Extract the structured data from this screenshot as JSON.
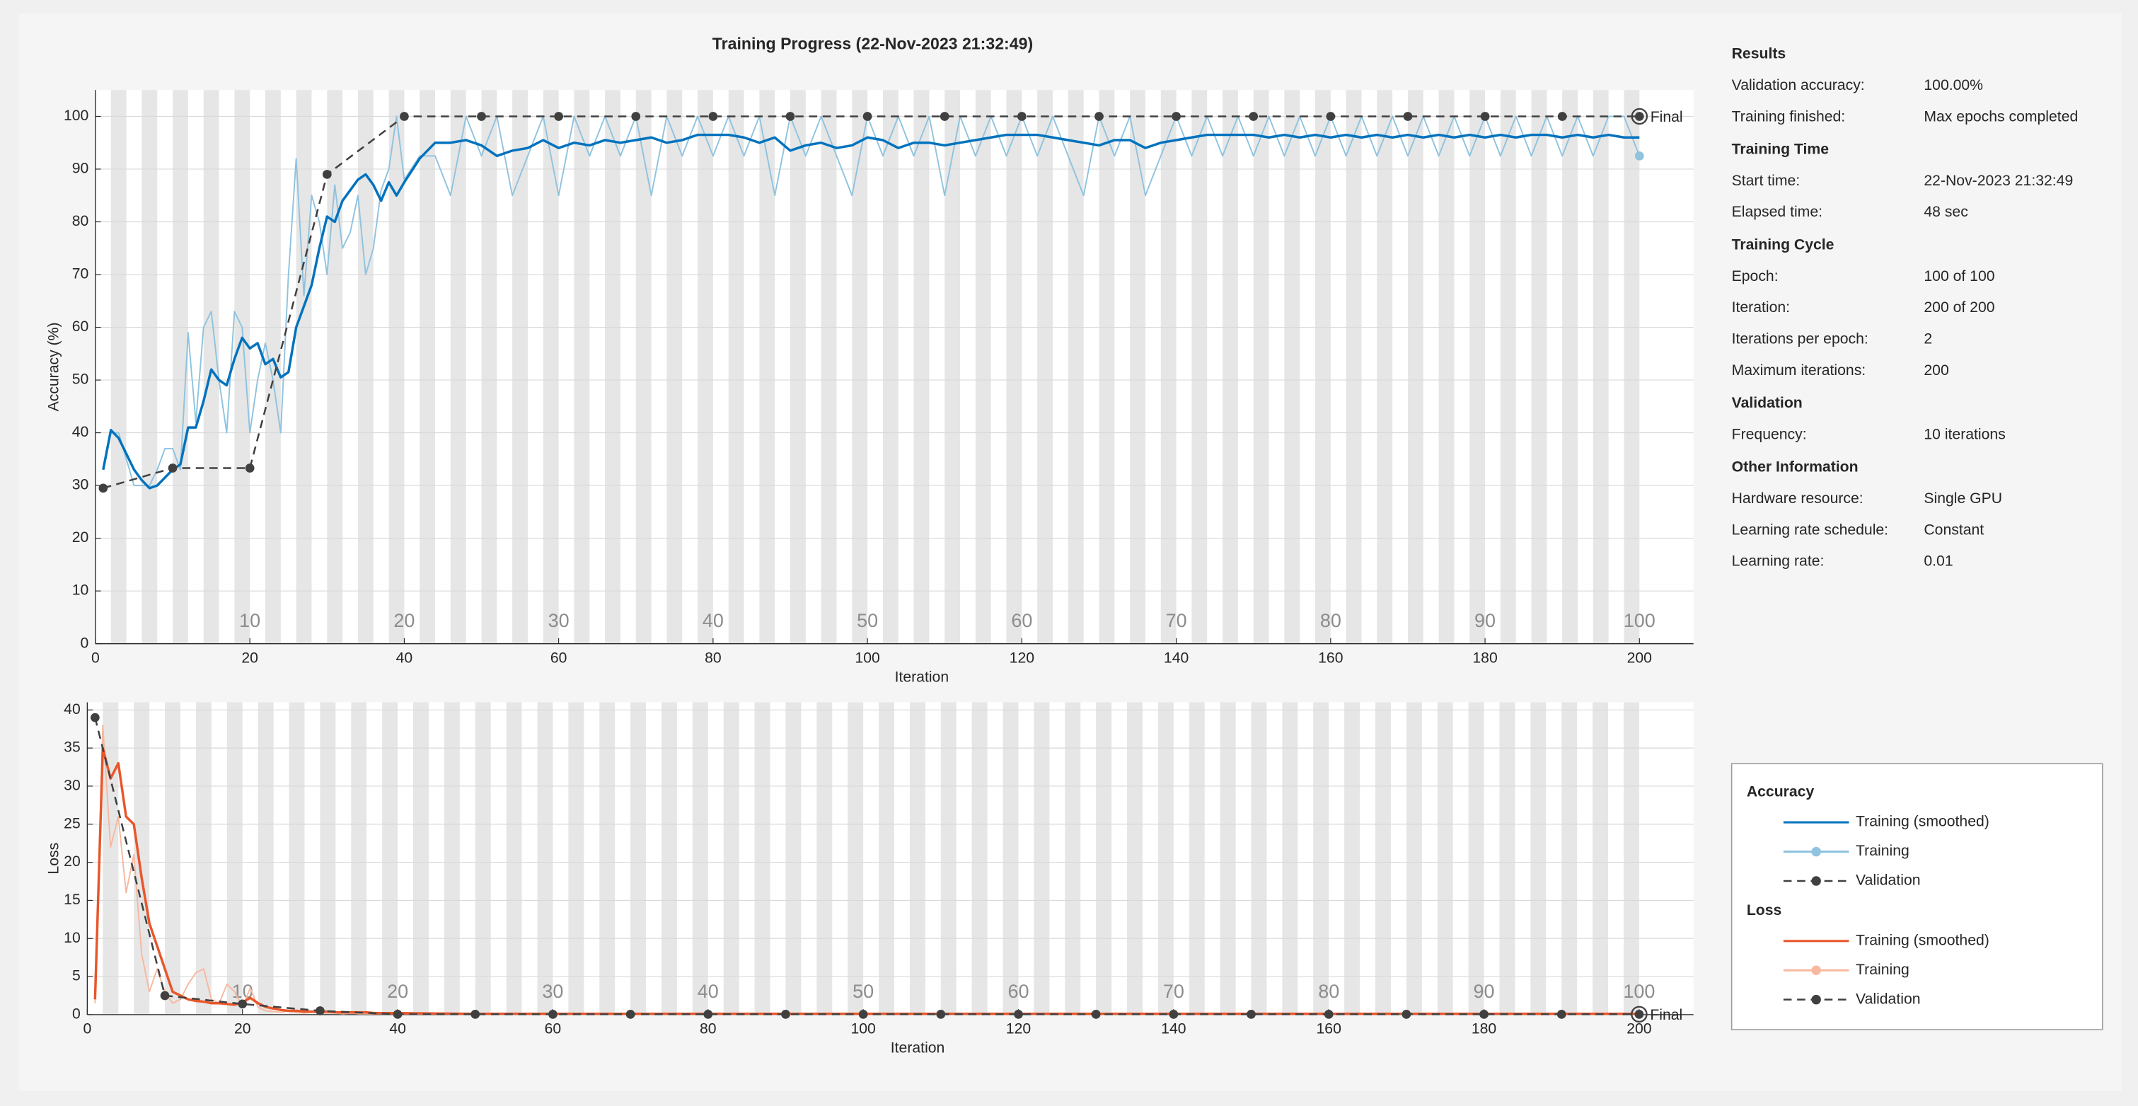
{
  "title": "Training Progress (22-Nov-2023 21:32:49)",
  "chart_data": [
    {
      "type": "line",
      "ylabel": "Accuracy (%)",
      "xlabel": "Iteration",
      "legend_title": "Accuracy",
      "final_label": "Final",
      "xlim": [
        0,
        207
      ],
      "ylim": [
        0,
        105
      ],
      "xticks": [
        0,
        20,
        40,
        60,
        80,
        100,
        120,
        140,
        160,
        180,
        200
      ],
      "yticks": [
        0,
        10,
        20,
        30,
        40,
        50,
        60,
        70,
        80,
        90,
        100
      ],
      "epoch_ticks": [
        {
          "value": 20,
          "label": "10"
        },
        {
          "value": 40,
          "label": "20"
        },
        {
          "value": 60,
          "label": "30"
        },
        {
          "value": 80,
          "label": "40"
        },
        {
          "value": 100,
          "label": "50"
        },
        {
          "value": 120,
          "label": "60"
        },
        {
          "value": 140,
          "label": "70"
        },
        {
          "value": 160,
          "label": "80"
        },
        {
          "value": 180,
          "label": "90"
        },
        {
          "value": 200,
          "label": "100"
        }
      ],
      "series": [
        {
          "name": "Training",
          "color": "#8fc3df",
          "line_style": "solid",
          "end_marker": true,
          "x": [
            1,
            2,
            3,
            4,
            5,
            6,
            7,
            8,
            9,
            10,
            11,
            12,
            13,
            14,
            15,
            16,
            17,
            18,
            19,
            20,
            21,
            22,
            23,
            24,
            25,
            26,
            27,
            28,
            29,
            30,
            31,
            32,
            33,
            34,
            35,
            36,
            37,
            38,
            39,
            40,
            42,
            44,
            46,
            48,
            50,
            52,
            54,
            56,
            58,
            60,
            62,
            64,
            66,
            68,
            70,
            72,
            74,
            76,
            78,
            80,
            82,
            84,
            86,
            88,
            90,
            92,
            94,
            96,
            98,
            100,
            102,
            104,
            106,
            108,
            110,
            112,
            114,
            116,
            118,
            120,
            122,
            124,
            126,
            128,
            130,
            132,
            134,
            136,
            138,
            140,
            142,
            144,
            146,
            148,
            150,
            152,
            154,
            156,
            158,
            160,
            162,
            164,
            166,
            168,
            170,
            172,
            174,
            176,
            178,
            180,
            182,
            184,
            186,
            188,
            190,
            192,
            194,
            196,
            198,
            200
          ],
          "values": [
            33,
            40,
            40,
            35,
            30,
            30,
            30,
            33,
            37,
            37,
            33,
            59,
            42,
            60,
            63,
            50,
            40,
            63,
            60,
            40,
            50,
            57,
            50,
            40,
            70,
            92,
            66,
            85,
            80,
            70,
            87,
            75,
            78,
            85,
            70,
            75,
            86,
            90,
            100,
            88,
            92.5,
            92.5,
            85,
            100,
            92.5,
            100,
            85,
            92.5,
            100,
            85,
            100,
            92.5,
            100,
            92.5,
            100,
            85,
            100,
            92.5,
            100,
            92.5,
            100,
            92.5,
            100,
            85,
            100,
            92.5,
            100,
            92.5,
            85,
            100,
            92.5,
            100,
            92.5,
            100,
            85,
            100,
            92.5,
            100,
            92.5,
            100,
            92.5,
            100,
            92.5,
            85,
            100,
            92.5,
            100,
            85,
            92.5,
            100,
            92.5,
            100,
            92.5,
            100,
            92.5,
            100,
            92.5,
            100,
            92.5,
            100,
            92.5,
            100,
            92.5,
            100,
            92.5,
            100,
            92.5,
            100,
            92.5,
            100,
            92.5,
            100,
            92.5,
            100,
            92.5,
            100,
            92.5,
            100,
            100,
            92.5
          ]
        },
        {
          "name": "Training (smoothed)",
          "color": "#0072bd",
          "line_style": "solid",
          "x": [
            1,
            2,
            3,
            4,
            5,
            6,
            7,
            8,
            9,
            10,
            11,
            12,
            13,
            14,
            15,
            16,
            17,
            18,
            19,
            20,
            21,
            22,
            23,
            24,
            25,
            26,
            27,
            28,
            29,
            30,
            31,
            32,
            33,
            34,
            35,
            36,
            37,
            38,
            39,
            40,
            42,
            44,
            46,
            48,
            50,
            52,
            54,
            56,
            58,
            60,
            62,
            64,
            66,
            68,
            70,
            72,
            74,
            76,
            78,
            80,
            82,
            84,
            86,
            88,
            90,
            92,
            94,
            96,
            98,
            100,
            102,
            104,
            106,
            108,
            110,
            112,
            114,
            116,
            118,
            120,
            122,
            124,
            126,
            128,
            130,
            132,
            134,
            136,
            138,
            140,
            142,
            144,
            146,
            148,
            150,
            152,
            154,
            156,
            158,
            160,
            162,
            164,
            166,
            168,
            170,
            172,
            174,
            176,
            178,
            180,
            182,
            184,
            186,
            188,
            190,
            192,
            194,
            196,
            198,
            200
          ],
          "values": [
            33,
            40.5,
            39,
            36,
            33,
            31,
            29.5,
            30,
            31.5,
            33,
            34,
            41,
            41,
            46,
            52,
            50,
            49,
            54,
            58,
            56,
            57,
            53,
            54,
            50.5,
            51.5,
            60,
            64,
            68,
            75,
            81,
            80,
            84,
            86,
            88,
            89,
            87,
            84,
            87.5,
            85,
            87.5,
            92,
            95,
            95,
            95.5,
            94.5,
            92.5,
            93.5,
            94,
            95.5,
            94,
            95,
            94.5,
            95.5,
            95,
            95.5,
            96,
            95,
            95.5,
            96.5,
            96.5,
            96.5,
            96,
            95,
            96,
            93.5,
            94.5,
            95,
            94,
            94.5,
            96,
            95.5,
            94,
            95,
            95,
            94.5,
            95,
            95.5,
            96,
            96.5,
            96.5,
            96.5,
            96,
            95.5,
            95,
            94.5,
            95.5,
            95.5,
            94,
            95,
            95.5,
            96,
            96.5,
            96.5,
            96.5,
            96.5,
            96,
            96.5,
            96,
            96.5,
            96,
            96.5,
            96,
            96.5,
            96,
            96.5,
            96,
            96.5,
            96,
            96.5,
            96,
            96.5,
            96,
            96.5,
            96.5,
            96,
            96.5,
            96,
            96.5,
            96,
            96
          ]
        },
        {
          "name": "Validation",
          "color": "#404040",
          "line_style": "dashed",
          "marker": "o",
          "x": [
            1,
            10,
            20,
            30,
            40,
            50,
            60,
            70,
            80,
            90,
            100,
            110,
            120,
            130,
            140,
            150,
            160,
            170,
            180,
            190,
            200
          ],
          "values": [
            29.5,
            33.3,
            33.3,
            89,
            100,
            100,
            100,
            100,
            100,
            100,
            100,
            100,
            100,
            100,
            100,
            100,
            100,
            100,
            100,
            100,
            100
          ]
        }
      ]
    },
    {
      "type": "line",
      "ylabel": "Loss",
      "xlabel": "Iteration",
      "legend_title": "Loss",
      "final_label": "Final",
      "xlim": [
        0,
        207
      ],
      "ylim": [
        0,
        41
      ],
      "xticks": [
        0,
        20,
        40,
        60,
        80,
        100,
        120,
        140,
        160,
        180,
        200
      ],
      "yticks": [
        0,
        5,
        10,
        15,
        20,
        25,
        30,
        35,
        40
      ],
      "epoch_ticks": [
        {
          "value": 20,
          "label": "10"
        },
        {
          "value": 40,
          "label": "20"
        },
        {
          "value": 60,
          "label": "30"
        },
        {
          "value": 80,
          "label": "40"
        },
        {
          "value": 100,
          "label": "50"
        },
        {
          "value": 120,
          "label": "60"
        },
        {
          "value": 140,
          "label": "70"
        },
        {
          "value": 160,
          "label": "80"
        },
        {
          "value": 180,
          "label": "90"
        },
        {
          "value": 200,
          "label": "100"
        }
      ],
      "series": [
        {
          "name": "Training",
          "color": "#f7b8a0",
          "line_style": "solid",
          "end_marker": true,
          "x": [
            1,
            2,
            3,
            4,
            5,
            6,
            7,
            8,
            9,
            10,
            11,
            12,
            13,
            14,
            15,
            16,
            17,
            18,
            19,
            20,
            21,
            22,
            23,
            24,
            25,
            26,
            27,
            28,
            29,
            30,
            31,
            32,
            33,
            34,
            35,
            36,
            37,
            38,
            39,
            40,
            50,
            60,
            70,
            80,
            90,
            100,
            110,
            120,
            130,
            140,
            150,
            160,
            170,
            180,
            190,
            200
          ],
          "values": [
            1.5,
            38,
            22,
            26,
            16,
            21,
            8,
            3,
            6,
            3,
            1.5,
            2,
            4,
            5.5,
            6,
            2,
            1.5,
            4,
            3,
            1,
            3.5,
            1,
            0.5,
            0.4,
            0.3,
            0.5,
            0.3,
            0.2,
            0.3,
            0.2,
            0.2,
            0.2,
            0.1,
            0.2,
            0.1,
            0.1,
            0.1,
            0.1,
            0.1,
            0.1,
            0.05,
            0.05,
            0.05,
            0.05,
            0.05,
            0.05,
            0.05,
            0.05,
            0.05,
            0.05,
            0.05,
            0.05,
            0.05,
            0.05,
            0.05,
            0.05
          ]
        },
        {
          "name": "Training (smoothed)",
          "color": "#e8562a",
          "line_style": "solid",
          "x": [
            1,
            2,
            3,
            4,
            5,
            6,
            7,
            8,
            9,
            10,
            11,
            12,
            13,
            14,
            15,
            16,
            17,
            18,
            19,
            20,
            21,
            22,
            23,
            24,
            25,
            26,
            27,
            28,
            29,
            30,
            31,
            32,
            33,
            34,
            35,
            36,
            37,
            38,
            39,
            40,
            50,
            60,
            70,
            80,
            90,
            100,
            110,
            120,
            130,
            140,
            150,
            160,
            170,
            180,
            190,
            200
          ],
          "values": [
            2,
            35,
            31,
            33,
            26,
            25,
            18,
            12,
            9,
            6,
            3,
            2.5,
            2,
            1.8,
            1.7,
            1.5,
            1.5,
            1.4,
            1.3,
            1.6,
            2.2,
            1.5,
            1.0,
            0.8,
            0.6,
            0.5,
            0.5,
            0.4,
            0.4,
            0.4,
            0.4,
            0.3,
            0.3,
            0.3,
            0.3,
            0.3,
            0.2,
            0.2,
            0.2,
            0.2,
            0.1,
            0.1,
            0.1,
            0.1,
            0.1,
            0.1,
            0.1,
            0.1,
            0.1,
            0.1,
            0.1,
            0.1,
            0.1,
            0.1,
            0.1,
            0.1
          ]
        },
        {
          "name": "Validation",
          "color": "#404040",
          "line_style": "dashed",
          "marker": "o",
          "x": [
            1,
            10,
            20,
            30,
            40,
            50,
            60,
            70,
            80,
            90,
            100,
            110,
            120,
            130,
            140,
            150,
            160,
            170,
            180,
            190,
            200
          ],
          "values": [
            39,
            2.5,
            1.4,
            0.5,
            0.05,
            0.05,
            0.05,
            0.05,
            0.05,
            0.05,
            0.05,
            0.05,
            0.05,
            0.05,
            0.05,
            0.05,
            0.05,
            0.05,
            0.05,
            0.05,
            0.05
          ]
        }
      ]
    }
  ],
  "info": {
    "sections": [
      {
        "title": "Results",
        "rows": [
          {
            "label": "Validation accuracy:",
            "value": "100.00%"
          },
          {
            "label": "Training finished:",
            "value": "Max epochs completed"
          }
        ]
      },
      {
        "title": "Training Time",
        "rows": [
          {
            "label": "Start time:",
            "value": "22-Nov-2023 21:32:49"
          },
          {
            "label": "Elapsed time:",
            "value": "48 sec"
          }
        ]
      },
      {
        "title": "Training Cycle",
        "rows": [
          {
            "label": "Epoch:",
            "value": "100 of 100"
          },
          {
            "label": "Iteration:",
            "value": "200 of 200"
          },
          {
            "label": "Iterations per epoch:",
            "value": "2"
          },
          {
            "label": "Maximum iterations:",
            "value": "200"
          }
        ]
      },
      {
        "title": "Validation",
        "rows": [
          {
            "label": "Frequency:",
            "value": "10 iterations"
          }
        ]
      },
      {
        "title": "Other Information",
        "rows": [
          {
            "label": "Hardware resource:",
            "value": "Single GPU"
          },
          {
            "label": "Learning rate schedule:",
            "value": "Constant"
          },
          {
            "label": "Learning rate:",
            "value": "0.01"
          }
        ]
      }
    ]
  }
}
